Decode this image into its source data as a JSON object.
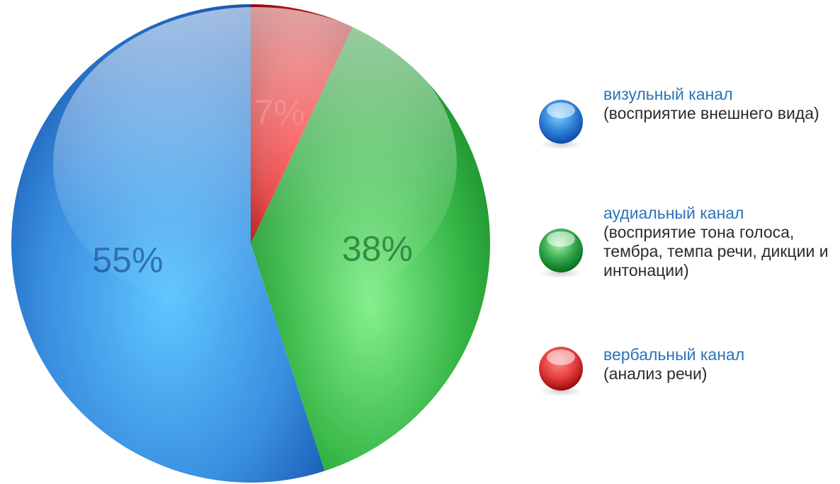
{
  "chart_data": {
    "type": "pie",
    "title": "",
    "slices": [
      {
        "label": "55%",
        "value": 55,
        "color": "#2e7fd6",
        "series": "визульный канал"
      },
      {
        "label": "38%",
        "value": 38,
        "color": "#2ea34a",
        "series": "аудиальный канал"
      },
      {
        "label": "7%",
        "value": 7,
        "color": "#e33a3a",
        "series": "вербальный канал"
      }
    ]
  },
  "legend": {
    "items": [
      {
        "title": "визульный канал",
        "desc": "(восприятие внешнего вида)",
        "color": "#2e7fd6",
        "icon": "blue-sphere-icon"
      },
      {
        "title": "аудиальный канал",
        "desc": "(восприятие тона голоса, тембра, темпа речи, дикции и интонации)",
        "color": "#2ea34a",
        "icon": "green-sphere-icon"
      },
      {
        "title": "вербальный канал",
        "desc": "(анализ речи)",
        "color": "#e33a3a",
        "icon": "red-sphere-icon"
      }
    ]
  }
}
